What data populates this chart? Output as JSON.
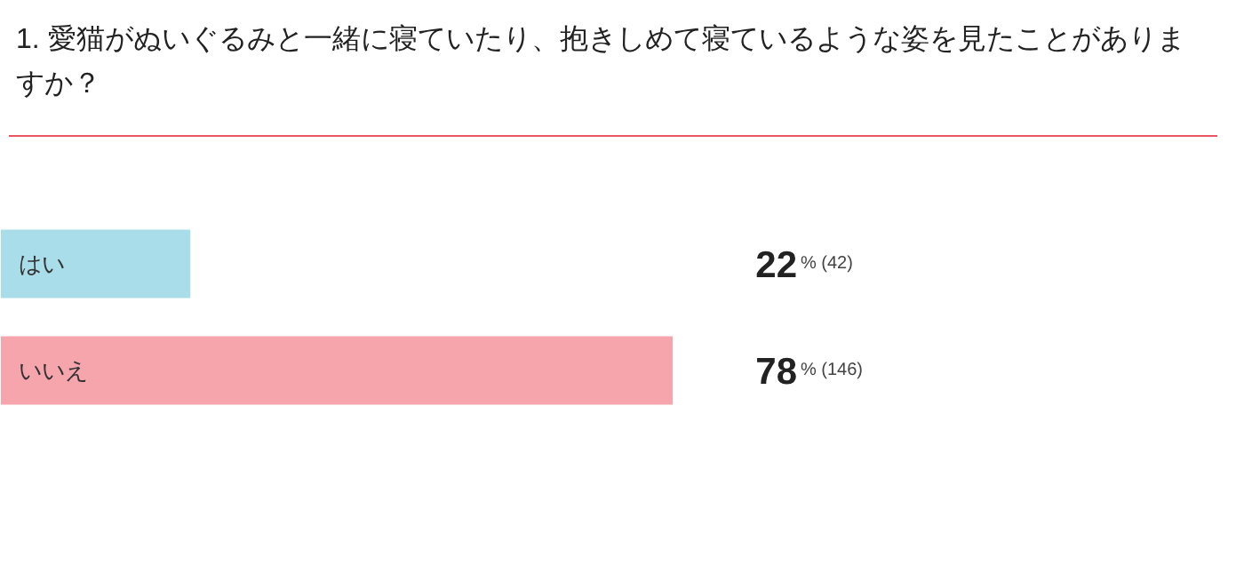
{
  "chart_data": {
    "type": "bar",
    "orientation": "horizontal",
    "title": "1. 愛猫がぬいぐるみと一緒に寝ていたり、抱きしめて寝ているような姿を見たことがありますか？",
    "categories": [
      "はい",
      "いいえ"
    ],
    "values": [
      22,
      78
    ],
    "colors": [
      "#a9dde9",
      "#f6a5ac"
    ],
    "value_labels": [
      "22% (42)",
      "78% (146)"
    ]
  }
}
